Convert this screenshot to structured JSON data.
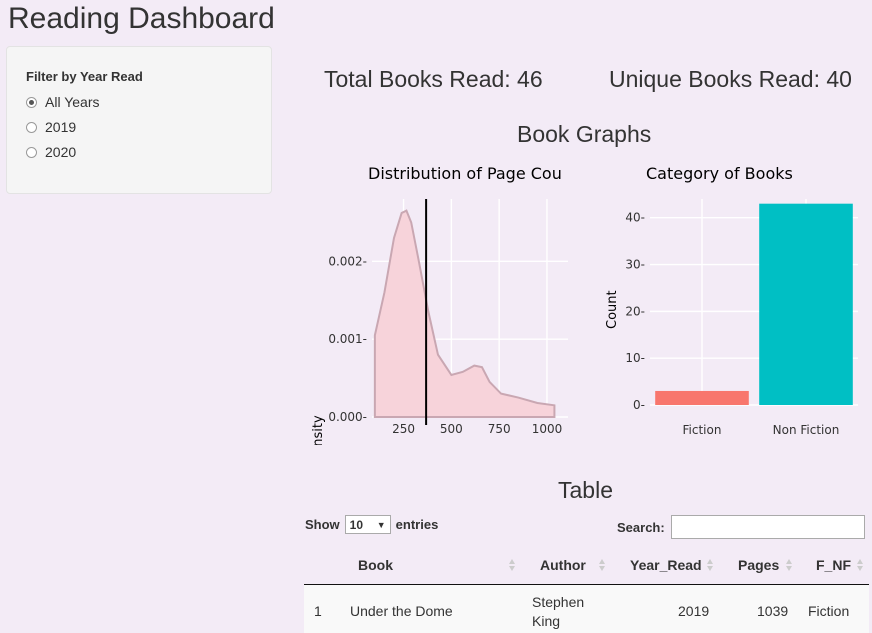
{
  "app": {
    "title": "Reading Dashboard"
  },
  "sidebar": {
    "filter_label": "Filter by Year Read",
    "options": [
      {
        "label": "All Years",
        "checked": true
      },
      {
        "label": "2019",
        "checked": false
      },
      {
        "label": "2020",
        "checked": false
      }
    ]
  },
  "stats": {
    "total": "Total Books Read: 46",
    "unique": "Unique Books Read: 40"
  },
  "graphs": {
    "heading": "Book Graphs"
  },
  "table_section": {
    "heading": "Table"
  },
  "chart_data": [
    {
      "type": "area",
      "title": "Distribution of Page Cou",
      "xlabel": "",
      "ylabel": "density",
      "x": [
        100,
        150,
        200,
        240,
        265,
        290,
        330,
        380,
        430,
        500,
        560,
        620,
        660,
        700,
        760,
        850,
        950,
        1039
      ],
      "y": [
        0.00105,
        0.0016,
        0.0023,
        0.00262,
        0.00265,
        0.0025,
        0.002,
        0.00135,
        0.0008,
        0.00054,
        0.00058,
        0.00066,
        0.00064,
        0.00045,
        0.0003,
        0.00025,
        0.00018,
        0.00015
      ],
      "xlim": [
        85,
        1110
      ],
      "ylim": [
        0,
        0.0028
      ],
      "vline": 368,
      "xticks": [
        250,
        500,
        750,
        1000
      ],
      "yticks": [
        0,
        0.001,
        0.002
      ],
      "ytick_labels": [
        "0.000-",
        "0.001-",
        "0.002-"
      ],
      "fill_color": "#f7d3da",
      "line_color": "#c9a7b2",
      "vline_color": "#000000"
    },
    {
      "type": "bar",
      "title": "Category of Books",
      "xlabel": "",
      "ylabel": "Count",
      "categories": [
        "Fiction",
        "Non Fiction"
      ],
      "values": [
        3,
        43
      ],
      "colors": [
        "#f8766d",
        "#00bfc4"
      ],
      "ylim": [
        0,
        44
      ],
      "yticks": [
        0,
        10,
        20,
        30,
        40
      ],
      "ytick_labels": [
        "0-",
        "10-",
        "20-",
        "30-",
        "40-"
      ]
    }
  ],
  "datatable": {
    "show_label": "Show",
    "length_value": "10",
    "entries_label": "entries",
    "search_label": "Search:",
    "search_value": "",
    "columns": [
      "Book",
      "Author",
      "Year_Read",
      "Pages",
      "F_NF"
    ],
    "rows": [
      {
        "index": "1",
        "book": "Under the Dome",
        "author": "Stephen King",
        "year": "2019",
        "pages": "1039",
        "fnf": "Fiction"
      }
    ]
  },
  "icons": {
    "dropdown": "chevron-down-icon",
    "sort": "sort-icon"
  }
}
